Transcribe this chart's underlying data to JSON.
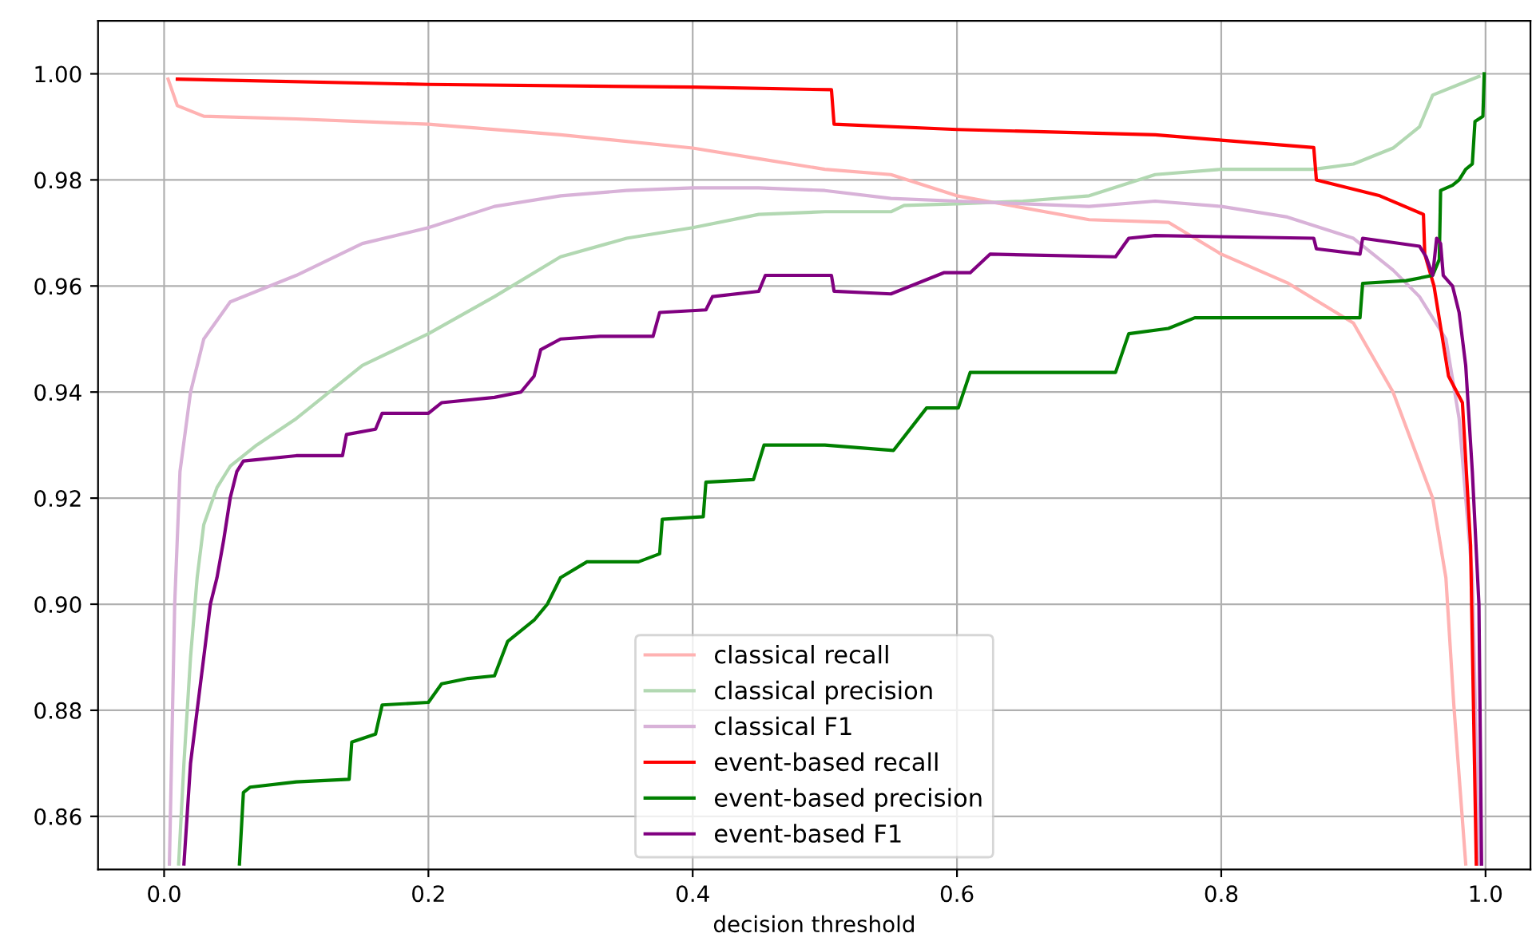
{
  "chart_data": {
    "type": "line",
    "xlabel": "decision threshold",
    "xlim": [
      -0.05,
      1.034
    ],
    "ylim": [
      0.85,
      1.01
    ],
    "xticks": [
      {
        "value": 0,
        "label": "0.0"
      },
      {
        "value": 0.2,
        "label": "0.2"
      },
      {
        "value": 0.4,
        "label": "0.4"
      },
      {
        "value": 0.6,
        "label": "0.6"
      },
      {
        "value": 0.8,
        "label": "0.8"
      },
      {
        "value": 1,
        "label": "1.0"
      }
    ],
    "yticks": [
      {
        "value": 0.86,
        "label": "0.86"
      },
      {
        "value": 0.88,
        "label": "0.88"
      },
      {
        "value": 0.9,
        "label": "0.90"
      },
      {
        "value": 0.92,
        "label": "0.92"
      },
      {
        "value": 0.94,
        "label": "0.94"
      },
      {
        "value": 0.96,
        "label": "0.96"
      },
      {
        "value": 0.98,
        "label": "0.98"
      },
      {
        "value": 1.0,
        "label": "1.00"
      }
    ],
    "grid": true,
    "legend": "bottom",
    "line_style": "solid",
    "series": [
      {
        "name": "classical recall",
        "color": "#ffb2b2",
        "x": [
          0.003,
          0.01,
          0.03,
          0.1,
          0.2,
          0.3,
          0.4,
          0.45,
          0.5,
          0.55,
          0.6,
          0.7,
          0.76,
          0.8,
          0.85,
          0.9,
          0.93,
          0.96,
          0.97,
          0.976,
          0.985
        ],
        "values": [
          0.999,
          0.994,
          0.992,
          0.9915,
          0.9905,
          0.9885,
          0.986,
          0.984,
          0.982,
          0.981,
          0.977,
          0.9725,
          0.972,
          0.966,
          0.9606,
          0.953,
          0.94,
          0.92,
          0.905,
          0.881,
          0.851
        ]
      },
      {
        "name": "classical precision",
        "color": "#b2d8b2",
        "x": [
          0.011,
          0.015,
          0.02,
          0.025,
          0.03,
          0.04,
          0.05,
          0.07,
          0.1,
          0.15,
          0.2,
          0.25,
          0.3,
          0.35,
          0.4,
          0.45,
          0.5,
          0.55,
          0.56,
          0.6,
          0.65,
          0.7,
          0.75,
          0.8,
          0.87,
          0.9,
          0.93,
          0.95,
          0.96,
          0.98,
          0.995
        ],
        "values": [
          0.851,
          0.87,
          0.89,
          0.905,
          0.915,
          0.922,
          0.926,
          0.93,
          0.935,
          0.945,
          0.951,
          0.958,
          0.9655,
          0.969,
          0.971,
          0.9735,
          0.974,
          0.974,
          0.9752,
          0.9755,
          0.976,
          0.977,
          0.981,
          0.982,
          0.982,
          0.983,
          0.986,
          0.99,
          0.996,
          0.998,
          0.9995
        ]
      },
      {
        "name": "classical F1",
        "color": "#d8b2d8",
        "x": [
          0.004,
          0.008,
          0.012,
          0.02,
          0.03,
          0.05,
          0.1,
          0.15,
          0.2,
          0.25,
          0.3,
          0.35,
          0.4,
          0.45,
          0.5,
          0.55,
          0.6,
          0.7,
          0.75,
          0.8,
          0.85,
          0.9,
          0.93,
          0.95,
          0.97,
          0.98,
          0.99,
          0.995
        ],
        "values": [
          0.851,
          0.9,
          0.925,
          0.94,
          0.95,
          0.957,
          0.962,
          0.968,
          0.971,
          0.975,
          0.977,
          0.978,
          0.9785,
          0.9785,
          0.978,
          0.9765,
          0.976,
          0.975,
          0.976,
          0.975,
          0.973,
          0.969,
          0.963,
          0.958,
          0.95,
          0.935,
          0.905,
          0.851
        ]
      },
      {
        "name": "event-based recall",
        "color": "#ff0000",
        "x": [
          0.01,
          0.2,
          0.4,
          0.505,
          0.507,
          0.6,
          0.75,
          0.8,
          0.87,
          0.872,
          0.92,
          0.953,
          0.954,
          0.961,
          0.972,
          0.9825,
          0.9887,
          0.993
        ],
        "values": [
          0.999,
          0.998,
          0.9975,
          0.997,
          0.9905,
          0.9895,
          0.9885,
          0.9875,
          0.9861,
          0.98,
          0.977,
          0.9735,
          0.966,
          0.96,
          0.943,
          0.938,
          0.911,
          0.851
        ]
      },
      {
        "name": "event-based precision",
        "color": "#008000",
        "x": [
          0.057,
          0.06,
          0.065,
          0.1,
          0.14,
          0.142,
          0.16,
          0.165,
          0.2,
          0.21,
          0.23,
          0.25,
          0.26,
          0.28,
          0.29,
          0.3,
          0.32,
          0.359,
          0.375,
          0.377,
          0.408,
          0.41,
          0.446,
          0.454,
          0.5,
          0.552,
          0.577,
          0.601,
          0.61,
          0.72,
          0.73,
          0.76,
          0.78,
          0.905,
          0.907,
          0.94,
          0.96,
          0.965,
          0.966,
          0.975,
          0.98,
          0.985,
          0.99,
          0.992,
          0.998,
          0.999
        ],
        "values": [
          0.851,
          0.8645,
          0.8655,
          0.8665,
          0.867,
          0.874,
          0.8755,
          0.881,
          0.8815,
          0.885,
          0.886,
          0.8865,
          0.893,
          0.897,
          0.9,
          0.905,
          0.908,
          0.908,
          0.9095,
          0.916,
          0.9165,
          0.923,
          0.9235,
          0.93,
          0.93,
          0.929,
          0.937,
          0.937,
          0.9437,
          0.9437,
          0.951,
          0.952,
          0.954,
          0.954,
          0.9605,
          0.961,
          0.962,
          0.965,
          0.978,
          0.979,
          0.98,
          0.982,
          0.983,
          0.991,
          0.992,
          1.0
        ]
      },
      {
        "name": "event-based F1",
        "color": "#800080",
        "x": [
          0.015,
          0.02,
          0.025,
          0.03,
          0.035,
          0.04,
          0.045,
          0.05,
          0.055,
          0.06,
          0.1,
          0.135,
          0.138,
          0.16,
          0.165,
          0.2,
          0.21,
          0.25,
          0.27,
          0.28,
          0.285,
          0.3,
          0.33,
          0.37,
          0.375,
          0.41,
          0.415,
          0.45,
          0.455,
          0.505,
          0.507,
          0.55,
          0.59,
          0.61,
          0.625,
          0.72,
          0.73,
          0.75,
          0.87,
          0.872,
          0.905,
          0.907,
          0.95,
          0.955,
          0.96,
          0.963,
          0.966,
          0.968,
          0.975,
          0.98,
          0.985,
          0.99,
          0.995,
          0.997
        ],
        "values": [
          0.851,
          0.87,
          0.88,
          0.89,
          0.9,
          0.905,
          0.912,
          0.92,
          0.925,
          0.927,
          0.928,
          0.928,
          0.932,
          0.933,
          0.936,
          0.936,
          0.938,
          0.939,
          0.94,
          0.943,
          0.948,
          0.95,
          0.9505,
          0.9505,
          0.955,
          0.9555,
          0.958,
          0.959,
          0.962,
          0.962,
          0.959,
          0.9585,
          0.9625,
          0.9625,
          0.966,
          0.9655,
          0.969,
          0.9695,
          0.969,
          0.967,
          0.966,
          0.969,
          0.9675,
          0.9655,
          0.962,
          0.969,
          0.968,
          0.962,
          0.96,
          0.955,
          0.945,
          0.925,
          0.9,
          0.851
        ]
      }
    ]
  }
}
